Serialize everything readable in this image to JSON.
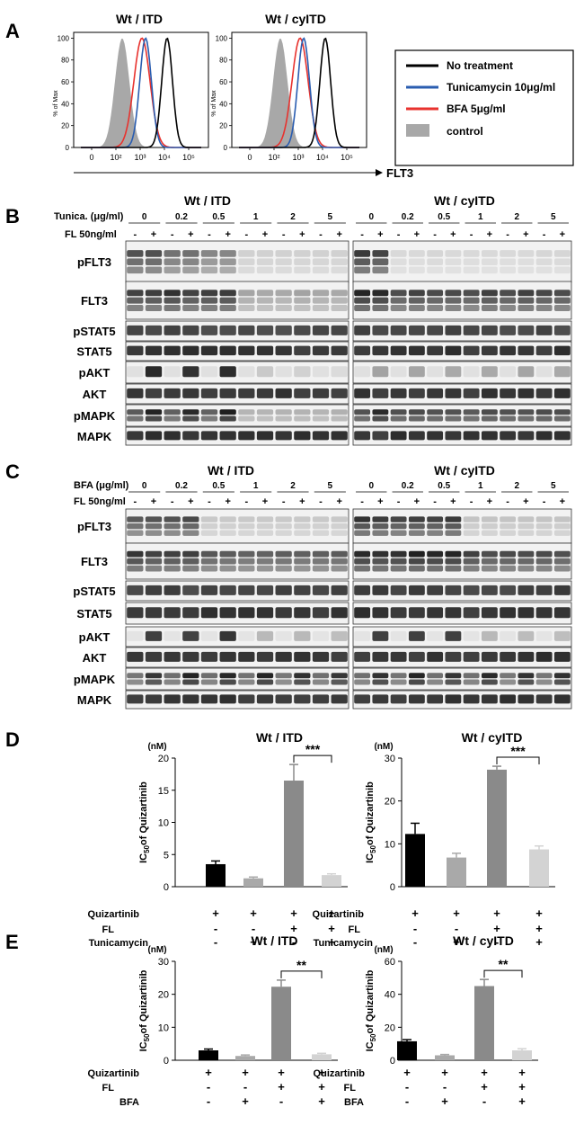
{
  "panels": {
    "A": "A",
    "B": "B",
    "C": "C",
    "D": "D",
    "E": "E"
  },
  "panelA": {
    "plots": [
      {
        "title": "Wt / ITD"
      },
      {
        "title": "Wt / cyITD"
      }
    ],
    "ylabel": "% of Max",
    "yticks": [
      "0",
      "20",
      "40",
      "60",
      "80",
      "100"
    ],
    "xticks": [
      "0",
      "10²",
      "10³",
      "10⁴",
      "10⁵"
    ],
    "axis_label": "FLT3",
    "legend": [
      {
        "label": "No treatment",
        "color": "#000000"
      },
      {
        "label": "Tunicamycin 10μg/ml",
        "color": "#2a5db0"
      },
      {
        "label": "BFA 5μg/ml",
        "color": "#e8322e"
      },
      {
        "label": "control",
        "color": "#a8a8a8"
      }
    ]
  },
  "panelB": {
    "treatment_label": "Tunica. (μg/ml)",
    "fl_label": "FL 50ng/ml",
    "groups": [
      {
        "title": "Wt / ITD"
      },
      {
        "title": "Wt / cyITD"
      }
    ],
    "doses": [
      "0",
      "0.2",
      "0.5",
      "1",
      "2",
      "5"
    ],
    "fl_signs": [
      "-",
      "+"
    ],
    "rows": [
      "pFLT3",
      "FLT3",
      "pSTAT5",
      "STAT5",
      "pAKT",
      "AKT",
      "pMAPK",
      "MAPK"
    ]
  },
  "panelC": {
    "treatment_label": "BFA (μg/ml)",
    "fl_label": "FL 50ng/ml",
    "groups": [
      {
        "title": "Wt / ITD"
      },
      {
        "title": "Wt / cyITD"
      }
    ],
    "doses": [
      "0",
      "0.2",
      "0.5",
      "1",
      "2",
      "5"
    ],
    "fl_signs": [
      "-",
      "+"
    ],
    "rows": [
      "pFLT3",
      "FLT3",
      "pSTAT5",
      "STAT5",
      "pAKT",
      "AKT",
      "pMAPK",
      "MAPK"
    ]
  },
  "bar_colors": [
    "#000000",
    "#a9a9a9",
    "#8a8a8a",
    "#d3d3d3"
  ],
  "chart_data": [
    {
      "type": "bar",
      "panel": "D",
      "title": "Wt / ITD",
      "unit": "(nM)",
      "ylabel": "IC50 of Quizartinib",
      "ylim": [
        0,
        20
      ],
      "yticks": [
        0,
        5,
        10,
        15,
        20
      ],
      "values": [
        3.5,
        1.3,
        16.5,
        1.8
      ],
      "errors": [
        0.5,
        0.2,
        2.5,
        0.2
      ],
      "significance": "***",
      "sig_between": [
        2,
        3
      ],
      "conditions": [
        {
          "label": "Quizartinib",
          "signs": [
            "+",
            "+",
            "+",
            "+"
          ]
        },
        {
          "label": "FL",
          "signs": [
            "-",
            "-",
            "+",
            "+"
          ]
        },
        {
          "label": "Tunicamycin",
          "signs": [
            "-",
            "+",
            "-",
            "+"
          ]
        }
      ]
    },
    {
      "type": "bar",
      "panel": "D",
      "title": "Wt / cyITD",
      "unit": "(nM)",
      "ylabel": "IC50 of Quizartinib",
      "ylim": [
        0,
        30
      ],
      "yticks": [
        0,
        10,
        20,
        30
      ],
      "values": [
        12.3,
        6.8,
        27.3,
        8.7
      ],
      "errors": [
        2.5,
        1.0,
        0.8,
        0.8
      ],
      "significance": "***",
      "sig_between": [
        2,
        3
      ],
      "conditions": [
        {
          "label": "Quizartinib",
          "signs": [
            "+",
            "+",
            "+",
            "+"
          ]
        },
        {
          "label": "FL",
          "signs": [
            "-",
            "-",
            "+",
            "+"
          ]
        },
        {
          "label": "Tunicamycin",
          "signs": [
            "-",
            "+",
            "-",
            "+"
          ]
        }
      ]
    },
    {
      "type": "bar",
      "panel": "E",
      "title": "Wt / ITD",
      "unit": "(nM)",
      "ylabel": "IC50 of Quizartinib",
      "ylim": [
        0,
        30
      ],
      "yticks": [
        0,
        10,
        20,
        30
      ],
      "values": [
        3.0,
        1.3,
        22.3,
        1.8
      ],
      "errors": [
        0.4,
        0.3,
        2.0,
        0.3
      ],
      "significance": "**",
      "sig_between": [
        2,
        3
      ],
      "conditions": [
        {
          "label": "Quizartinib",
          "signs": [
            "+",
            "+",
            "+",
            "+"
          ]
        },
        {
          "label": "FL",
          "signs": [
            "-",
            "-",
            "+",
            "+"
          ]
        },
        {
          "label": "BFA",
          "signs": [
            "-",
            "+",
            "-",
            "+"
          ]
        }
      ]
    },
    {
      "type": "bar",
      "panel": "E",
      "title": "Wt / cyITD",
      "unit": "(nM)",
      "ylabel": "IC50 of Quizartinib",
      "ylim": [
        0,
        60
      ],
      "yticks": [
        0,
        20,
        40,
        60
      ],
      "values": [
        11.5,
        3.0,
        45.0,
        6.0
      ],
      "errors": [
        1.0,
        0.5,
        4.0,
        1.0
      ],
      "significance": "**",
      "sig_between": [
        2,
        3
      ],
      "conditions": [
        {
          "label": "Quizartinib",
          "signs": [
            "+",
            "+",
            "+",
            "+"
          ]
        },
        {
          "label": "FL",
          "signs": [
            "-",
            "-",
            "+",
            "+"
          ]
        },
        {
          "label": "BFA",
          "signs": [
            "-",
            "+",
            "-",
            "+"
          ]
        }
      ]
    }
  ]
}
